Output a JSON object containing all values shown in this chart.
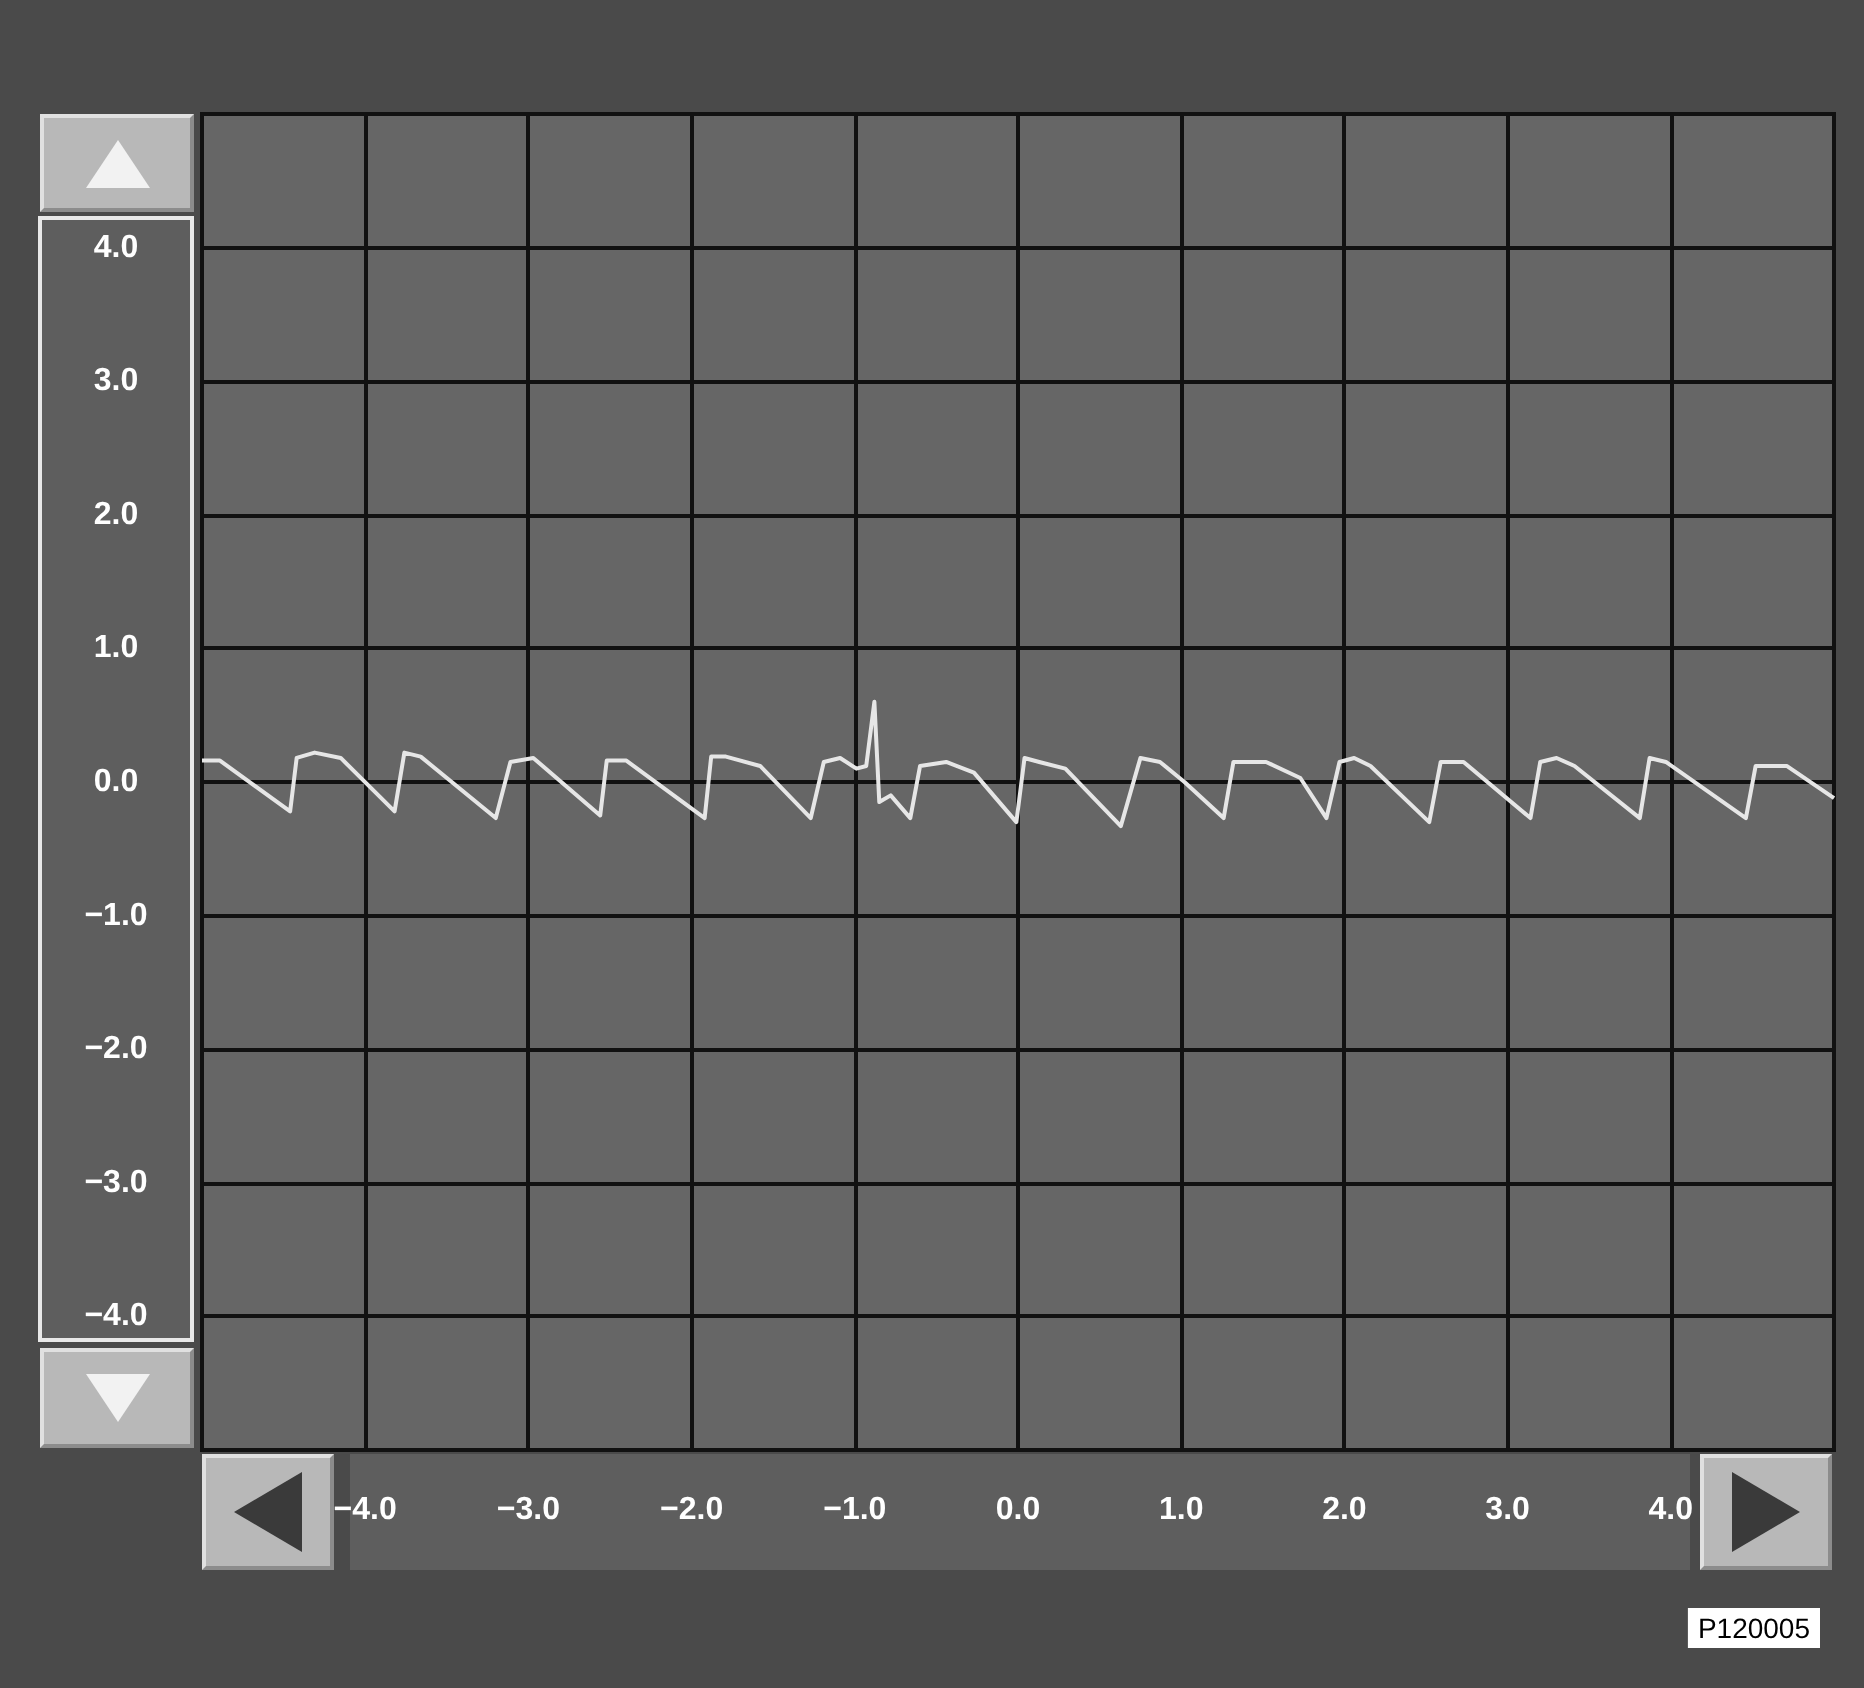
{
  "chart_data": {
    "type": "line",
    "x": [
      -5.0,
      -4.89,
      -4.46,
      -4.42,
      -4.31,
      -4.15,
      -3.82,
      -3.76,
      -3.66,
      -3.2,
      -3.11,
      -2.97,
      -2.56,
      -2.52,
      -2.4,
      -1.92,
      -1.88,
      -1.79,
      -1.58,
      -1.27,
      -1.19,
      -1.09,
      -0.99,
      -0.93,
      -0.88,
      -0.85,
      -0.78,
      -0.66,
      -0.6,
      -0.44,
      -0.27,
      -0.01,
      0.04,
      0.13,
      0.29,
      0.63,
      0.75,
      0.87,
      1.02,
      1.26,
      1.32,
      1.52,
      1.73,
      1.89,
      1.97,
      2.06,
      2.16,
      2.52,
      2.59,
      2.73,
      3.14,
      3.2,
      3.3,
      3.41,
      3.81,
      3.87,
      3.97,
      4.46,
      4.52,
      4.71,
      5.0
    ],
    "values": [
      0.16,
      0.16,
      -0.22,
      0.18,
      0.22,
      0.18,
      -0.22,
      0.22,
      0.19,
      -0.27,
      0.15,
      0.18,
      -0.25,
      0.16,
      0.16,
      -0.27,
      0.19,
      0.19,
      0.12,
      -0.27,
      0.15,
      0.18,
      0.1,
      0.12,
      0.6,
      -0.15,
      -0.1,
      -0.27,
      0.12,
      0.15,
      0.07,
      -0.3,
      0.18,
      0.15,
      0.1,
      -0.33,
      0.18,
      0.15,
      0.0,
      -0.27,
      0.15,
      0.15,
      0.03,
      -0.27,
      0.15,
      0.18,
      0.12,
      -0.3,
      0.15,
      0.15,
      -0.27,
      0.15,
      0.18,
      0.12,
      -0.27,
      0.18,
      0.15,
      -0.27,
      0.12,
      0.12,
      -0.12
    ],
    "color": "#e6e6e6",
    "xlim": [
      -5,
      5
    ],
    "ylim": [
      -5,
      5
    ],
    "xticks": [
      {
        "value": -4,
        "label": "−4.0"
      },
      {
        "value": -3,
        "label": "−3.0"
      },
      {
        "value": -2,
        "label": "−2.0"
      },
      {
        "value": -1,
        "label": "−1.0"
      },
      {
        "value": 0,
        "label": "0.0"
      },
      {
        "value": 1,
        "label": "1.0"
      },
      {
        "value": 2,
        "label": "2.0"
      },
      {
        "value": 3,
        "label": "3.0"
      },
      {
        "value": 4,
        "label": "4.0"
      }
    ],
    "yticks": [
      {
        "value": 4,
        "label": "4.0"
      },
      {
        "value": 3,
        "label": "3.0"
      },
      {
        "value": 2,
        "label": "2.0"
      },
      {
        "value": 1,
        "label": "1.0"
      },
      {
        "value": 0,
        "label": "0.0"
      },
      {
        "value": -1,
        "label": "−1.0"
      },
      {
        "value": -2,
        "label": "−2.0"
      },
      {
        "value": -3,
        "label": "−3.0"
      },
      {
        "value": -4,
        "label": "−4.0"
      }
    ],
    "grid": true,
    "marker": "none",
    "line_style": "solid",
    "annotations": [
      "P120005"
    ]
  }
}
